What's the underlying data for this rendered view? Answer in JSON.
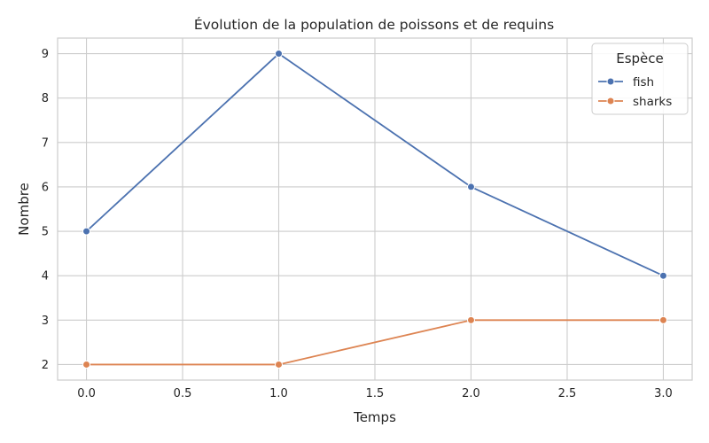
{
  "chart_data": {
    "type": "line",
    "title": "Évolution de la population de poissons et de requins",
    "xlabel": "Temps",
    "ylabel": "Nombre",
    "xlim": [
      -0.15,
      3.15
    ],
    "ylim": [
      1.65,
      9.35
    ],
    "xticks": [
      0.0,
      0.5,
      1.0,
      1.5,
      2.0,
      2.5,
      3.0
    ],
    "xtick_labels": [
      "0.0",
      "0.5",
      "1.0",
      "1.5",
      "2.0",
      "2.5",
      "3.0"
    ],
    "yticks": [
      2,
      3,
      4,
      5,
      6,
      7,
      8,
      9
    ],
    "ytick_labels": [
      "2",
      "3",
      "4",
      "5",
      "6",
      "7",
      "8",
      "9"
    ],
    "grid": true,
    "legend": {
      "title": "Espèce",
      "placement": "top-right"
    },
    "x": [
      0,
      1,
      2,
      3
    ],
    "series": [
      {
        "name": "fish",
        "color": "#4c72b0",
        "marker": "circle",
        "values": [
          5,
          9,
          6,
          4
        ]
      },
      {
        "name": "sharks",
        "color": "#dd8452",
        "marker": "circle",
        "values": [
          2,
          2,
          3,
          3
        ]
      }
    ]
  }
}
